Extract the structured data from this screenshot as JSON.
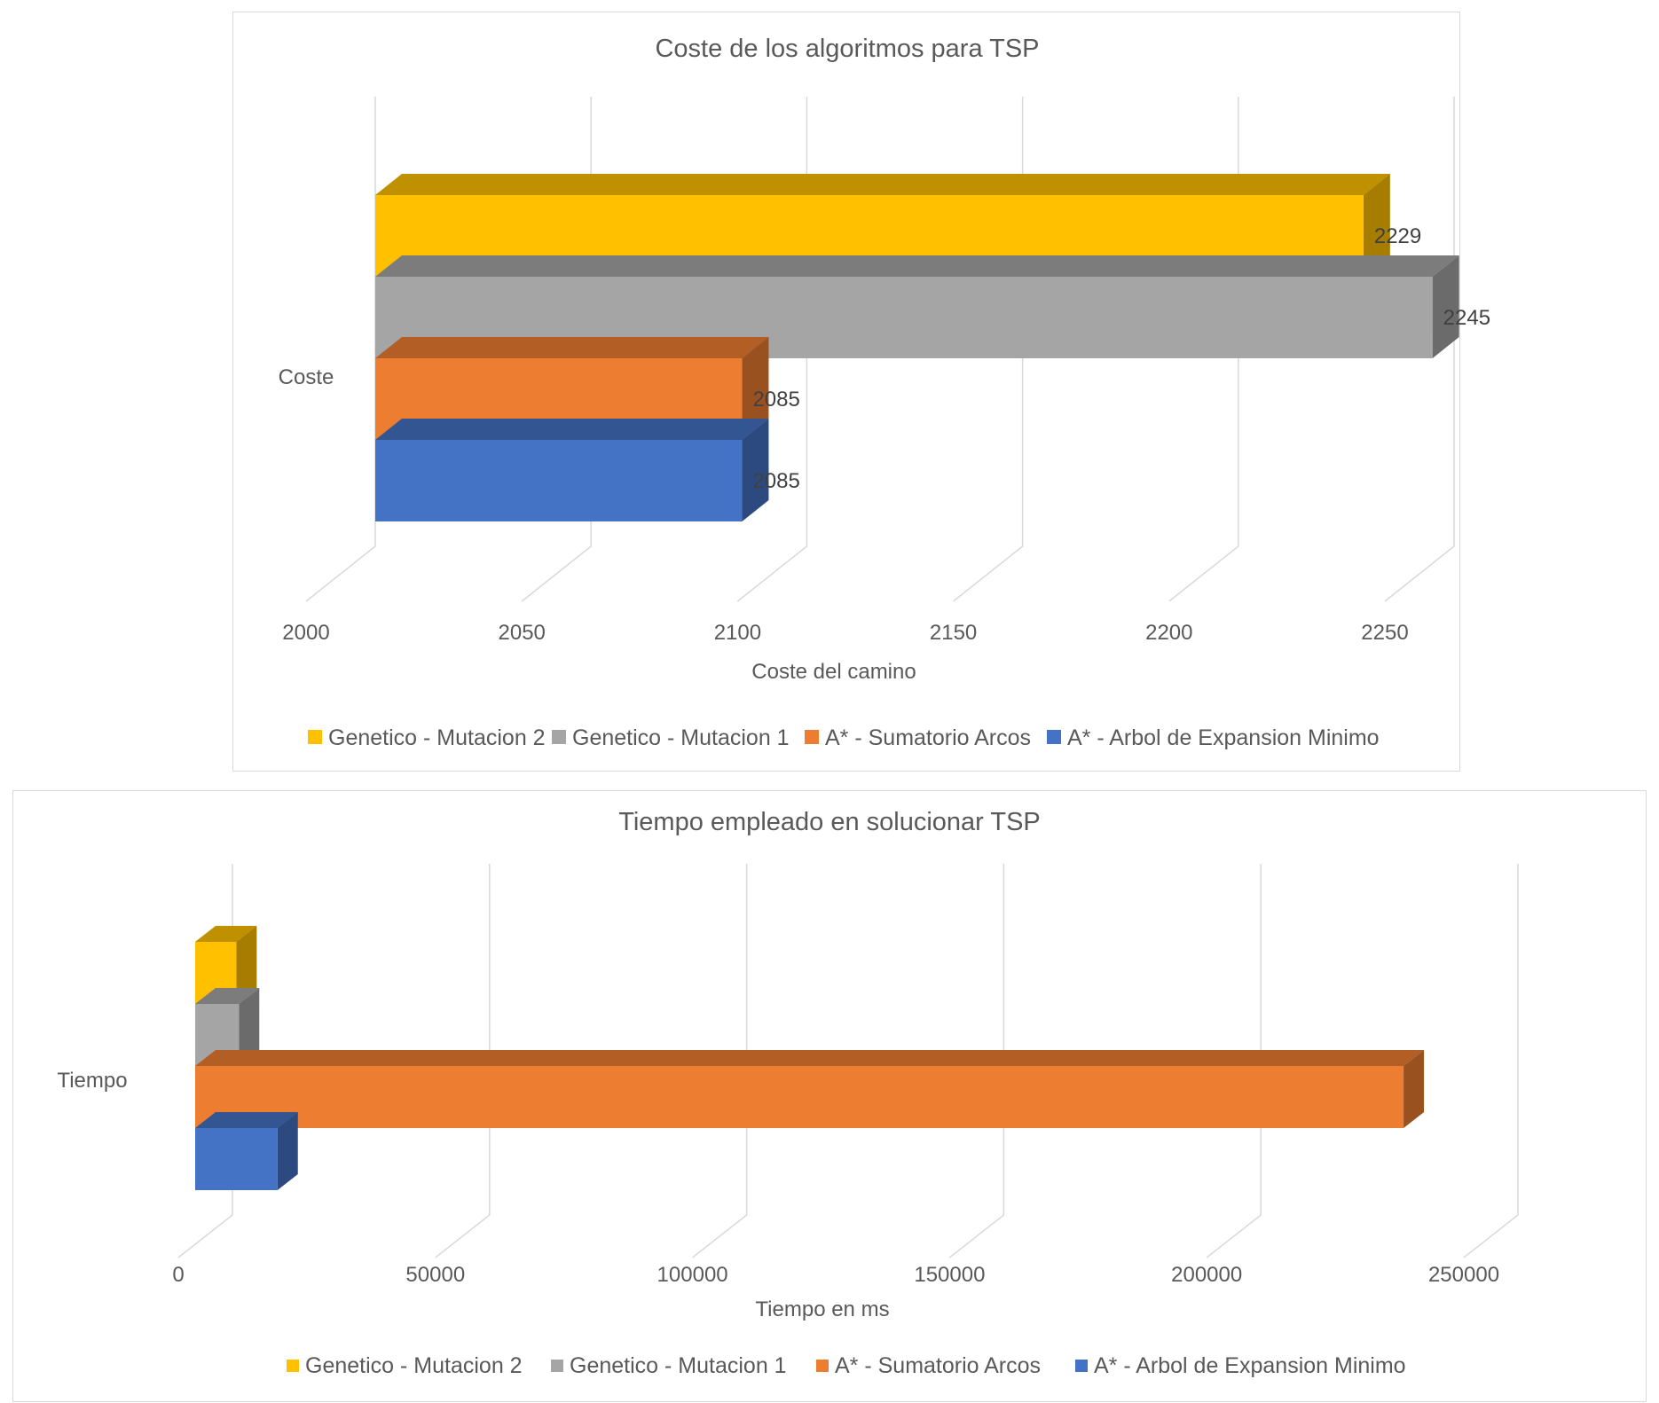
{
  "colors": {
    "genetico_mutacion_2": "#FFC000",
    "genetico_mutacion_1": "#A5A5A5",
    "a_star_sumatorio": "#ED7D31",
    "a_star_arbol": "#4472C4"
  },
  "chart_data": [
    {
      "type": "bar",
      "orientation": "horizontal",
      "style": "3d-clustered",
      "title": "Coste de los algoritmos para TSP",
      "xlabel": "Coste del camino",
      "categories": [
        "Coste"
      ],
      "xlim": [
        2000,
        2250
      ],
      "ticks": [
        "2000",
        "2050",
        "2100",
        "2150",
        "2200",
        "2250"
      ],
      "grid": true,
      "legend": "bottom",
      "data_labels": true,
      "series": [
        {
          "name": "Genetico - Mutacion 2",
          "values": [
            2229
          ],
          "color": "#FFC000"
        },
        {
          "name": "Genetico - Mutacion 1",
          "values": [
            2245
          ],
          "color": "#A5A5A5"
        },
        {
          "name": "A* - Sumatorio Arcos",
          "values": [
            2085
          ],
          "color": "#ED7D31"
        },
        {
          "name": "A* - Arbol de Expansion Minimo",
          "values": [
            2085
          ],
          "color": "#4472C4"
        }
      ]
    },
    {
      "type": "bar",
      "orientation": "horizontal",
      "style": "3d-clustered",
      "title": "Tiempo empleado en solucionar TSP",
      "xlabel": "Tiempo en ms",
      "categories": [
        "Tiempo"
      ],
      "xlim": [
        0,
        250000
      ],
      "ticks": [
        "0",
        "50000",
        "100000",
        "150000",
        "200000",
        "250000"
      ],
      "grid": true,
      "legend": "bottom",
      "data_labels": false,
      "series": [
        {
          "name": "Genetico - Mutacion 2",
          "values": [
            8000
          ],
          "color": "#FFC000"
        },
        {
          "name": "Genetico - Mutacion 1",
          "values": [
            8500
          ],
          "color": "#A5A5A5"
        },
        {
          "name": "A* - Sumatorio Arcos",
          "values": [
            235000
          ],
          "color": "#ED7D31"
        },
        {
          "name": "A* - Arbol de Expansion Minimo",
          "values": [
            16000
          ],
          "color": "#4472C4"
        }
      ]
    }
  ]
}
